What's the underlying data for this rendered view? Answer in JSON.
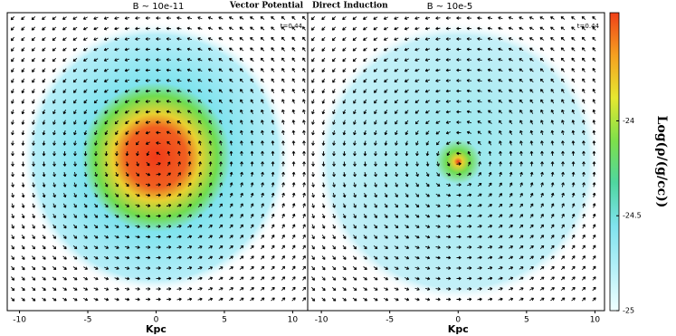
{
  "chart_data": [
    {
      "type": "heatmap",
      "title": "B ~ 10e-11",
      "label": "Vector Potential",
      "annotation": "t=0.44",
      "xlabel": "Kpc",
      "xlim": [
        -10.9,
        11.1
      ],
      "xticks": [
        -10,
        -5,
        0,
        5,
        10
      ]
    },
    {
      "type": "heatmap",
      "title": "B ~ 10e-5",
      "label": "Direct Induction",
      "annotation": "t=0.44",
      "xlabel": "Kpc",
      "xlim": [
        -11,
        10.7
      ],
      "xticks": [
        -10,
        -5,
        0,
        5,
        10
      ]
    },
    {
      "type": "colorbar",
      "label": "Log(ρ/(g/cc))",
      "ylim": [
        -25,
        -23.43
      ],
      "yticks": [
        -24,
        -24.5,
        -25
      ],
      "colors": [
        "#f0ffff",
        "#b4f0f8",
        "#7fe3ee",
        "#4fd6a0",
        "#7ee04a",
        "#e6e830",
        "#f5a020",
        "#f04018"
      ]
    }
  ]
}
